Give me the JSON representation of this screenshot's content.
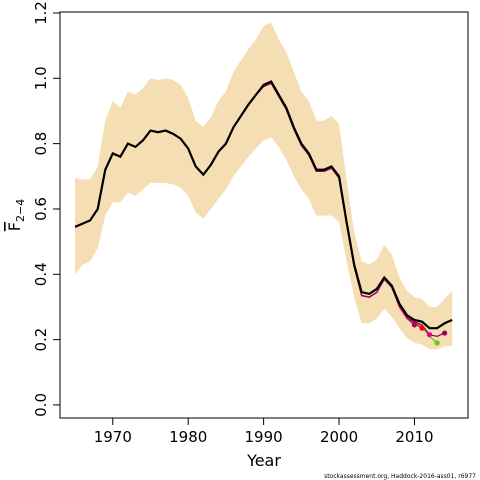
{
  "chart_data": {
    "type": "line",
    "x_label": "Year",
    "y_label": "F",
    "y_label_subscript": "2−4",
    "footnote": "stockassessment.org, Haddock-2016-ass01, r6977",
    "x": [
      1965,
      1966,
      1967,
      1968,
      1969,
      1970,
      1971,
      1972,
      1973,
      1974,
      1975,
      1976,
      1977,
      1978,
      1979,
      1980,
      1981,
      1982,
      1983,
      1984,
      1985,
      1986,
      1987,
      1988,
      1989,
      1990,
      1991,
      1992,
      1993,
      1994,
      1995,
      1996,
      1997,
      1998,
      1999,
      2000,
      2001,
      2002,
      2003,
      2004,
      2005,
      2006,
      2007,
      2008,
      2009,
      2010,
      2011,
      2012,
      2013,
      2014,
      2015
    ],
    "values": [
      0.545,
      0.555,
      0.565,
      0.6,
      0.72,
      0.77,
      0.76,
      0.8,
      0.79,
      0.81,
      0.84,
      0.835,
      0.84,
      0.83,
      0.815,
      0.785,
      0.73,
      0.705,
      0.735,
      0.775,
      0.8,
      0.85,
      0.885,
      0.92,
      0.95,
      0.98,
      0.99,
      0.95,
      0.91,
      0.85,
      0.8,
      0.77,
      0.72,
      0.72,
      0.73,
      0.7,
      0.56,
      0.43,
      0.345,
      0.34,
      0.355,
      0.39,
      0.365,
      0.31,
      0.275,
      0.26,
      0.255,
      0.235,
      0.235,
      0.25,
      0.26
    ],
    "color": "#000000",
    "band": {
      "color": "#f5deb3",
      "upper": [
        0.695,
        0.69,
        0.69,
        0.73,
        0.87,
        0.93,
        0.91,
        0.96,
        0.95,
        0.97,
        1.0,
        0.995,
        1.0,
        0.995,
        0.98,
        0.94,
        0.87,
        0.85,
        0.88,
        0.93,
        0.96,
        1.02,
        1.055,
        1.09,
        1.12,
        1.16,
        1.17,
        1.12,
        1.08,
        1.02,
        0.96,
        0.93,
        0.87,
        0.87,
        0.885,
        0.86,
        0.69,
        0.53,
        0.44,
        0.43,
        0.445,
        0.49,
        0.46,
        0.39,
        0.35,
        0.33,
        0.325,
        0.3,
        0.3,
        0.325,
        0.35
      ],
      "lower": [
        0.4,
        0.43,
        0.44,
        0.48,
        0.58,
        0.62,
        0.62,
        0.65,
        0.64,
        0.66,
        0.68,
        0.68,
        0.68,
        0.675,
        0.665,
        0.64,
        0.59,
        0.57,
        0.6,
        0.63,
        0.66,
        0.7,
        0.73,
        0.76,
        0.785,
        0.81,
        0.82,
        0.79,
        0.75,
        0.7,
        0.66,
        0.63,
        0.58,
        0.58,
        0.58,
        0.56,
        0.44,
        0.33,
        0.25,
        0.25,
        0.265,
        0.295,
        0.27,
        0.235,
        0.205,
        0.19,
        0.185,
        0.17,
        0.17,
        0.18,
        0.18
      ]
    },
    "series": [
      {
        "color": "#b0005a",
        "values": [
          0.545,
          0.555,
          0.565,
          0.6,
          0.72,
          0.77,
          0.76,
          0.8,
          0.79,
          0.81,
          0.84,
          0.835,
          0.84,
          0.83,
          0.815,
          0.785,
          0.73,
          0.705,
          0.735,
          0.775,
          0.8,
          0.85,
          0.885,
          0.92,
          0.95,
          0.975,
          0.985,
          0.945,
          0.905,
          0.845,
          0.795,
          0.765,
          0.715,
          0.715,
          0.725,
          0.695,
          0.555,
          0.425,
          0.335,
          0.33,
          0.345,
          0.385,
          0.36,
          0.3,
          0.265,
          0.245,
          null,
          null,
          null,
          null,
          null
        ]
      },
      {
        "color": "#ff0000",
        "values": [
          0.545,
          0.555,
          0.565,
          0.6,
          0.72,
          0.77,
          0.76,
          0.8,
          0.79,
          0.81,
          0.84,
          0.835,
          0.84,
          0.83,
          0.815,
          0.785,
          0.73,
          0.705,
          0.735,
          0.775,
          0.8,
          0.85,
          0.885,
          0.92,
          0.95,
          0.975,
          0.985,
          0.945,
          0.905,
          0.845,
          0.795,
          0.765,
          0.715,
          0.715,
          0.725,
          0.695,
          0.555,
          0.425,
          0.335,
          0.33,
          0.345,
          0.385,
          0.36,
          0.305,
          0.27,
          0.25,
          0.235,
          null,
          null,
          null,
          null
        ]
      },
      {
        "color": "#e6007e",
        "values": [
          0.545,
          0.555,
          0.565,
          0.6,
          0.72,
          0.77,
          0.76,
          0.8,
          0.79,
          0.81,
          0.84,
          0.835,
          0.84,
          0.83,
          0.815,
          0.785,
          0.73,
          0.705,
          0.735,
          0.775,
          0.8,
          0.85,
          0.885,
          0.92,
          0.95,
          0.975,
          0.985,
          0.945,
          0.905,
          0.845,
          0.795,
          0.765,
          0.715,
          0.715,
          0.725,
          0.695,
          0.555,
          0.425,
          0.335,
          0.33,
          0.345,
          0.385,
          0.36,
          0.305,
          0.27,
          0.25,
          0.235,
          0.215,
          null,
          null,
          null
        ]
      },
      {
        "color": "#66cc00",
        "values": [
          0.545,
          0.555,
          0.565,
          0.6,
          0.72,
          0.77,
          0.76,
          0.8,
          0.79,
          0.81,
          0.84,
          0.835,
          0.84,
          0.83,
          0.815,
          0.785,
          0.73,
          0.705,
          0.735,
          0.775,
          0.8,
          0.85,
          0.885,
          0.92,
          0.95,
          0.975,
          0.985,
          0.945,
          0.905,
          0.845,
          0.795,
          0.765,
          0.715,
          0.715,
          0.725,
          0.695,
          0.555,
          0.425,
          0.335,
          0.33,
          0.345,
          0.385,
          0.36,
          0.305,
          0.27,
          0.255,
          0.24,
          0.21,
          0.19,
          null,
          null
        ]
      },
      {
        "color": "#990066",
        "values": [
          0.545,
          0.555,
          0.565,
          0.6,
          0.72,
          0.77,
          0.76,
          0.8,
          0.79,
          0.81,
          0.84,
          0.835,
          0.84,
          0.83,
          0.815,
          0.785,
          0.73,
          0.705,
          0.735,
          0.775,
          0.8,
          0.85,
          0.885,
          0.92,
          0.95,
          0.975,
          0.985,
          0.945,
          0.905,
          0.845,
          0.795,
          0.765,
          0.715,
          0.715,
          0.725,
          0.695,
          0.555,
          0.425,
          0.335,
          0.33,
          0.345,
          0.385,
          0.36,
          0.305,
          0.27,
          0.255,
          0.245,
          0.215,
          0.21,
          0.22,
          null
        ]
      }
    ],
    "xlim": [
      1963,
      2017.1
    ],
    "ylim": [
      -0.04,
      1.203
    ],
    "xticks": [
      1970,
      1980,
      1990,
      2000,
      2010
    ],
    "yticks": [
      {
        "value": 0,
        "label": "0.0"
      },
      0.2,
      0.4,
      0.6,
      0.8,
      {
        "value": 1,
        "label": "1.0"
      },
      1.2
    ],
    "grid": false
  }
}
